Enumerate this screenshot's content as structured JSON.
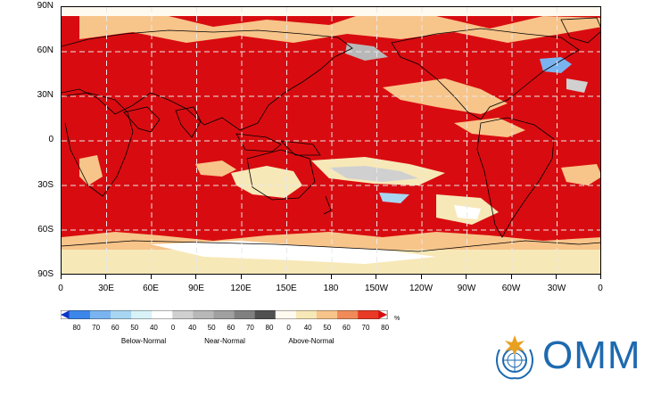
{
  "map": {
    "lat_labels": [
      "90N",
      "60N",
      "30N",
      "0",
      "30S",
      "60S",
      "90S"
    ],
    "lon_labels": [
      "0",
      "30E",
      "60E",
      "90E",
      "120E",
      "150E",
      "180",
      "150W",
      "120W",
      "90W",
      "60W",
      "30W",
      "0"
    ],
    "grid": "dashed",
    "grid_color": "#e8e8e8",
    "coastline_color": "#000000"
  },
  "legend": {
    "numbers": [
      "80",
      "70",
      "60",
      "50",
      "40",
      "0",
      "40",
      "50",
      "60",
      "70",
      "80",
      "0",
      "40",
      "50",
      "60",
      "70",
      "80"
    ],
    "categories": [
      "Below-Normal",
      "Near-Normal",
      "Above-Normal"
    ],
    "unit": "%",
    "colors": [
      "#0a36c8",
      "#3c86ea",
      "#7ab4f0",
      "#a8d6f2",
      "#d8f2f8",
      "#ffffff",
      "#d0d0d0",
      "#b8b8b8",
      "#a0a0a0",
      "#808080",
      "#505050",
      "#fffaf0",
      "#f7e8b8",
      "#f7c48a",
      "#f08a58",
      "#e83a26",
      "#d80c10"
    ]
  },
  "logo": {
    "text": "OMM",
    "icon": "wmo-emblem-icon",
    "color": "#1d6ab0"
  }
}
